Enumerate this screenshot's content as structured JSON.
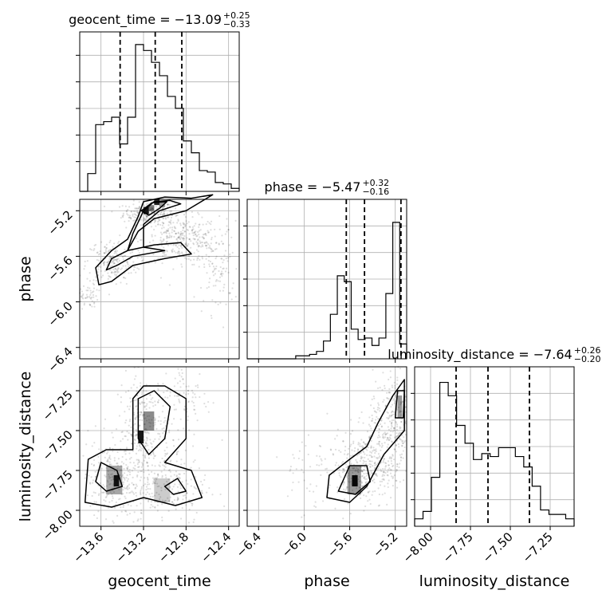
{
  "chart_data": {
    "type": "corner",
    "grid": true,
    "parameters": [
      {
        "name": "geocent_time",
        "range": [
          -13.8,
          -12.3
        ],
        "ticks": [
          -13.6,
          -13.2,
          -12.8,
          -12.4
        ],
        "tick_labels": [
          "−13.6",
          "−13.2",
          "−12.8",
          "−12.4"
        ],
        "title_main": "geocent_time = −13.09",
        "title_plus": "+0.25",
        "title_minus": "−0.33",
        "quantiles": [
          -13.42,
          -13.09,
          -12.84
        ]
      },
      {
        "name": "phase",
        "range": [
          -6.5,
          -5.1
        ],
        "ticks": [
          -6.4,
          -6.0,
          -5.6,
          -5.2
        ],
        "tick_labels": [
          "−6.4",
          "−6.0",
          "−5.6",
          "−5.2"
        ],
        "title_main": "phase = −5.47",
        "title_plus": "+0.32",
        "title_minus": "−0.16",
        "quantiles": [
          -5.63,
          -5.47,
          -5.15
        ]
      },
      {
        "name": "luminosity_distance",
        "range": [
          -8.1,
          -7.1
        ],
        "ticks": [
          -8.0,
          -7.75,
          -7.5,
          -7.25
        ],
        "tick_labels": [
          "−8.00",
          "−7.75",
          "−7.50",
          "−7.25"
        ],
        "title_main": "luminosity_distance = −7.64",
        "title_plus": "+0.26",
        "title_minus": "−0.20",
        "quantiles": [
          -7.84,
          -7.64,
          -7.38
        ]
      }
    ],
    "histograms": [
      {
        "param": "geocent_time",
        "values": [
          0,
          0.12,
          0.45,
          0.47,
          0.5,
          0.32,
          0.5,
          0.99,
          0.95,
          0.87,
          0.78,
          0.64,
          0.56,
          0.34,
          0.26,
          0.14,
          0.13,
          0.06,
          0.05,
          0.02
        ]
      },
      {
        "param": "phase",
        "values": [
          0,
          0,
          0,
          0,
          0,
          0,
          0,
          0.02,
          0.02,
          0.03,
          0.05,
          0.12,
          0.3,
          0.56,
          0.52,
          0.2,
          0.13,
          0.14,
          0.09,
          0.14,
          0.44,
          0.92,
          0.1
        ]
      },
      {
        "param": "luminosity_distance",
        "values": [
          0.05,
          0.1,
          0.33,
          0.97,
          0.88,
          0.68,
          0.56,
          0.45,
          0.49,
          0.47,
          0.53,
          0.53,
          0.47,
          0.4,
          0.27,
          0.11,
          0.08,
          0.08,
          0.05
        ]
      }
    ],
    "xlabels": [
      "geocent_time",
      "phase",
      "luminosity_distance"
    ],
    "ylabels": [
      "",
      "phase",
      "luminosity_distance"
    ],
    "colors": {
      "line": "#000000",
      "grid": "#b0b0b0",
      "points": "#000000"
    }
  }
}
